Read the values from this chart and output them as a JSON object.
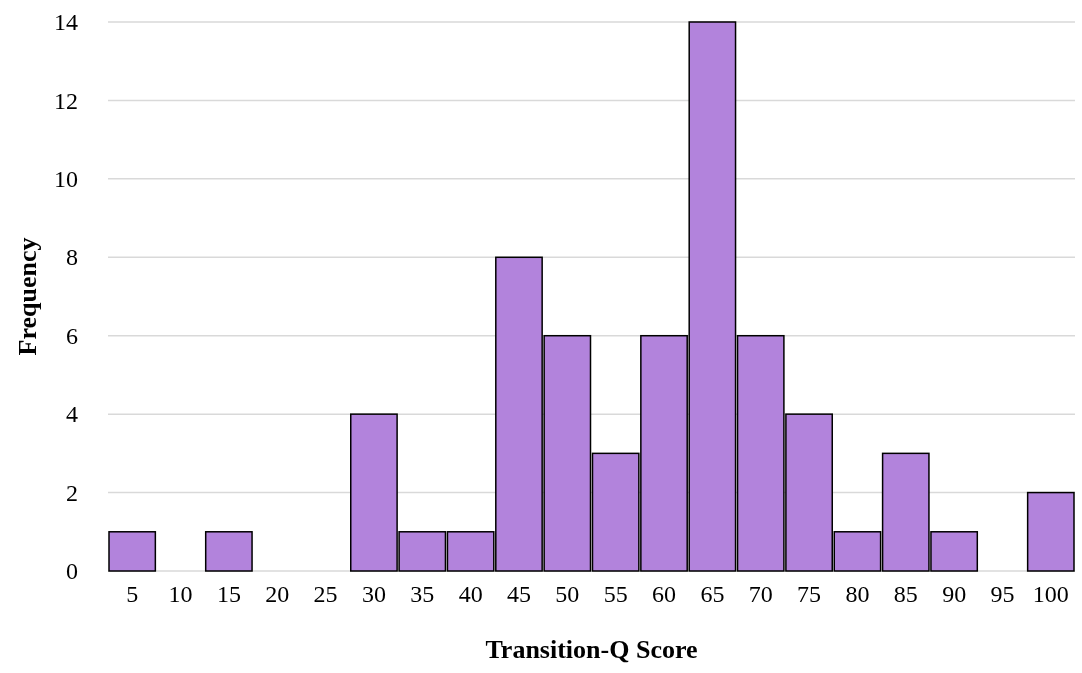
{
  "chart_data": {
    "type": "bar",
    "xlabel": "Transition-Q Score",
    "ylabel": "Frequency",
    "categories": [
      "5",
      "10",
      "15",
      "20",
      "25",
      "30",
      "35",
      "40",
      "45",
      "50",
      "55",
      "60",
      "65",
      "70",
      "75",
      "80",
      "85",
      "90",
      "95",
      "100"
    ],
    "values": [
      1,
      0,
      1,
      0,
      0,
      4,
      1,
      1,
      8,
      6,
      3,
      6,
      14,
      6,
      4,
      1,
      3,
      1,
      0,
      2
    ],
    "color": "#b283dc",
    "ylim": [
      0,
      14
    ],
    "yticks": [
      0,
      2,
      4,
      6,
      8,
      10,
      12,
      14
    ],
    "grid": "y"
  }
}
